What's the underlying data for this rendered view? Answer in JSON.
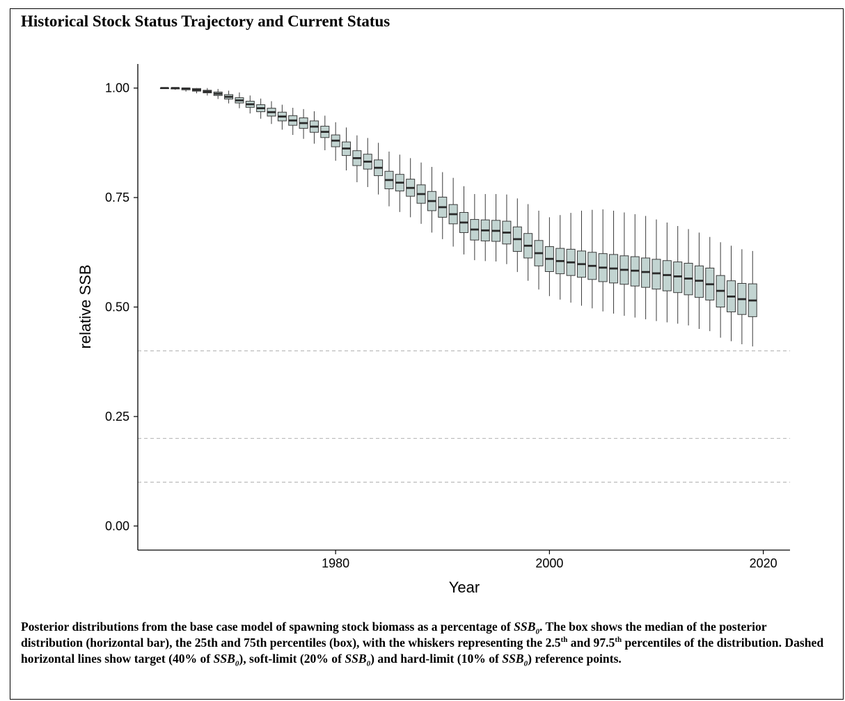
{
  "title": "Historical Stock Status Trajectory and Current Status",
  "caption": {
    "p1": "Posterior distributions from the base case model of spawning stock biomass as a percentage of ",
    "ssb_base": "SSB",
    "ssb_sub": "0",
    "p1_end": ".",
    "p2": " The box shows the median of the posterior distribution (horizontal bar), the 25th and 75th percentiles (box), with the whiskers representing the 2.5",
    "th": "th",
    "p3": " and 97.5",
    "p4": " percentiles of the distribution. Dashed horizontal lines show target (40% of ",
    "p5": "), soft-limit (20% of ",
    "p6": ") and hard-limit (10% of ",
    "p7": ") reference points."
  },
  "chart_data": {
    "type": "boxplot",
    "title": "Historical Stock Status Trajectory and Current Status",
    "xlabel": "Year",
    "ylabel": "relative SSB",
    "xlim": [
      1961.5,
      2022.5
    ],
    "ylim": [
      -0.055,
      1.055
    ],
    "xticks": [
      1980,
      2000,
      2020
    ],
    "yticks": [
      "0.00",
      "0.25",
      "0.50",
      "0.75",
      "1.00"
    ],
    "reference_lines": [
      0.4,
      0.2,
      0.1
    ],
    "box_fill": "#c2d4d1",
    "box_stroke": "#3a3a3a",
    "reference_line_color": "#bbbbbb",
    "years": [
      1964,
      1965,
      1966,
      1967,
      1968,
      1969,
      1970,
      1971,
      1972,
      1973,
      1974,
      1975,
      1976,
      1977,
      1978,
      1979,
      1980,
      1981,
      1982,
      1983,
      1984,
      1985,
      1986,
      1987,
      1988,
      1989,
      1990,
      1991,
      1992,
      1993,
      1994,
      1995,
      1996,
      1997,
      1998,
      1999,
      2000,
      2001,
      2002,
      2003,
      2004,
      2005,
      2006,
      2007,
      2008,
      2009,
      2010,
      2011,
      2012,
      2013,
      2014,
      2015,
      2016,
      2017,
      2018,
      2019
    ],
    "median": [
      1.0,
      1.0,
      0.999,
      0.996,
      0.992,
      0.987,
      0.98,
      0.972,
      0.963,
      0.954,
      0.945,
      0.935,
      0.926,
      0.92,
      0.912,
      0.9,
      0.88,
      0.862,
      0.84,
      0.832,
      0.818,
      0.79,
      0.784,
      0.772,
      0.758,
      0.742,
      0.728,
      0.712,
      0.693,
      0.677,
      0.675,
      0.674,
      0.67,
      0.655,
      0.64,
      0.623,
      0.61,
      0.605,
      0.602,
      0.598,
      0.594,
      0.59,
      0.588,
      0.585,
      0.583,
      0.58,
      0.577,
      0.573,
      0.57,
      0.565,
      0.56,
      0.552,
      0.537,
      0.524,
      0.518,
      0.515
    ],
    "q1": [
      0.999,
      0.998,
      0.996,
      0.993,
      0.989,
      0.983,
      0.975,
      0.966,
      0.956,
      0.946,
      0.936,
      0.925,
      0.915,
      0.908,
      0.899,
      0.887,
      0.866,
      0.846,
      0.823,
      0.815,
      0.8,
      0.77,
      0.765,
      0.753,
      0.737,
      0.72,
      0.705,
      0.69,
      0.67,
      0.653,
      0.651,
      0.65,
      0.644,
      0.627,
      0.612,
      0.594,
      0.581,
      0.576,
      0.572,
      0.568,
      0.563,
      0.558,
      0.555,
      0.552,
      0.548,
      0.545,
      0.541,
      0.537,
      0.533,
      0.528,
      0.522,
      0.516,
      0.5,
      0.489,
      0.483,
      0.478
    ],
    "q3": [
      1.0,
      1.0,
      1.0,
      0.999,
      0.995,
      0.991,
      0.985,
      0.978,
      0.97,
      0.962,
      0.954,
      0.945,
      0.937,
      0.932,
      0.925,
      0.913,
      0.893,
      0.877,
      0.857,
      0.849,
      0.836,
      0.81,
      0.803,
      0.792,
      0.779,
      0.764,
      0.751,
      0.734,
      0.716,
      0.7,
      0.699,
      0.698,
      0.696,
      0.683,
      0.668,
      0.652,
      0.638,
      0.634,
      0.632,
      0.628,
      0.625,
      0.622,
      0.62,
      0.617,
      0.615,
      0.612,
      0.609,
      0.606,
      0.603,
      0.6,
      0.594,
      0.589,
      0.572,
      0.56,
      0.554,
      0.553
    ],
    "whisker_low": [
      0.998,
      0.996,
      0.992,
      0.988,
      0.983,
      0.975,
      0.965,
      0.954,
      0.942,
      0.93,
      0.918,
      0.905,
      0.893,
      0.884,
      0.873,
      0.858,
      0.834,
      0.812,
      0.785,
      0.774,
      0.757,
      0.73,
      0.717,
      0.705,
      0.69,
      0.67,
      0.655,
      0.638,
      0.62,
      0.607,
      0.605,
      0.604,
      0.598,
      0.58,
      0.56,
      0.54,
      0.525,
      0.517,
      0.51,
      0.503,
      0.497,
      0.49,
      0.485,
      0.48,
      0.476,
      0.472,
      0.468,
      0.465,
      0.462,
      0.458,
      0.45,
      0.445,
      0.43,
      0.422,
      0.415,
      0.41
    ],
    "whisker_high": [
      1.0,
      1.0,
      1.0,
      1.0,
      1.0,
      0.998,
      0.994,
      0.99,
      0.983,
      0.976,
      0.97,
      0.962,
      0.955,
      0.952,
      0.947,
      0.937,
      0.922,
      0.91,
      0.892,
      0.886,
      0.875,
      0.855,
      0.848,
      0.84,
      0.83,
      0.82,
      0.808,
      0.795,
      0.776,
      0.758,
      0.758,
      0.758,
      0.757,
      0.748,
      0.735,
      0.72,
      0.705,
      0.71,
      0.715,
      0.72,
      0.722,
      0.723,
      0.72,
      0.716,
      0.712,
      0.708,
      0.7,
      0.693,
      0.685,
      0.678,
      0.67,
      0.66,
      0.648,
      0.64,
      0.632,
      0.628
    ]
  }
}
